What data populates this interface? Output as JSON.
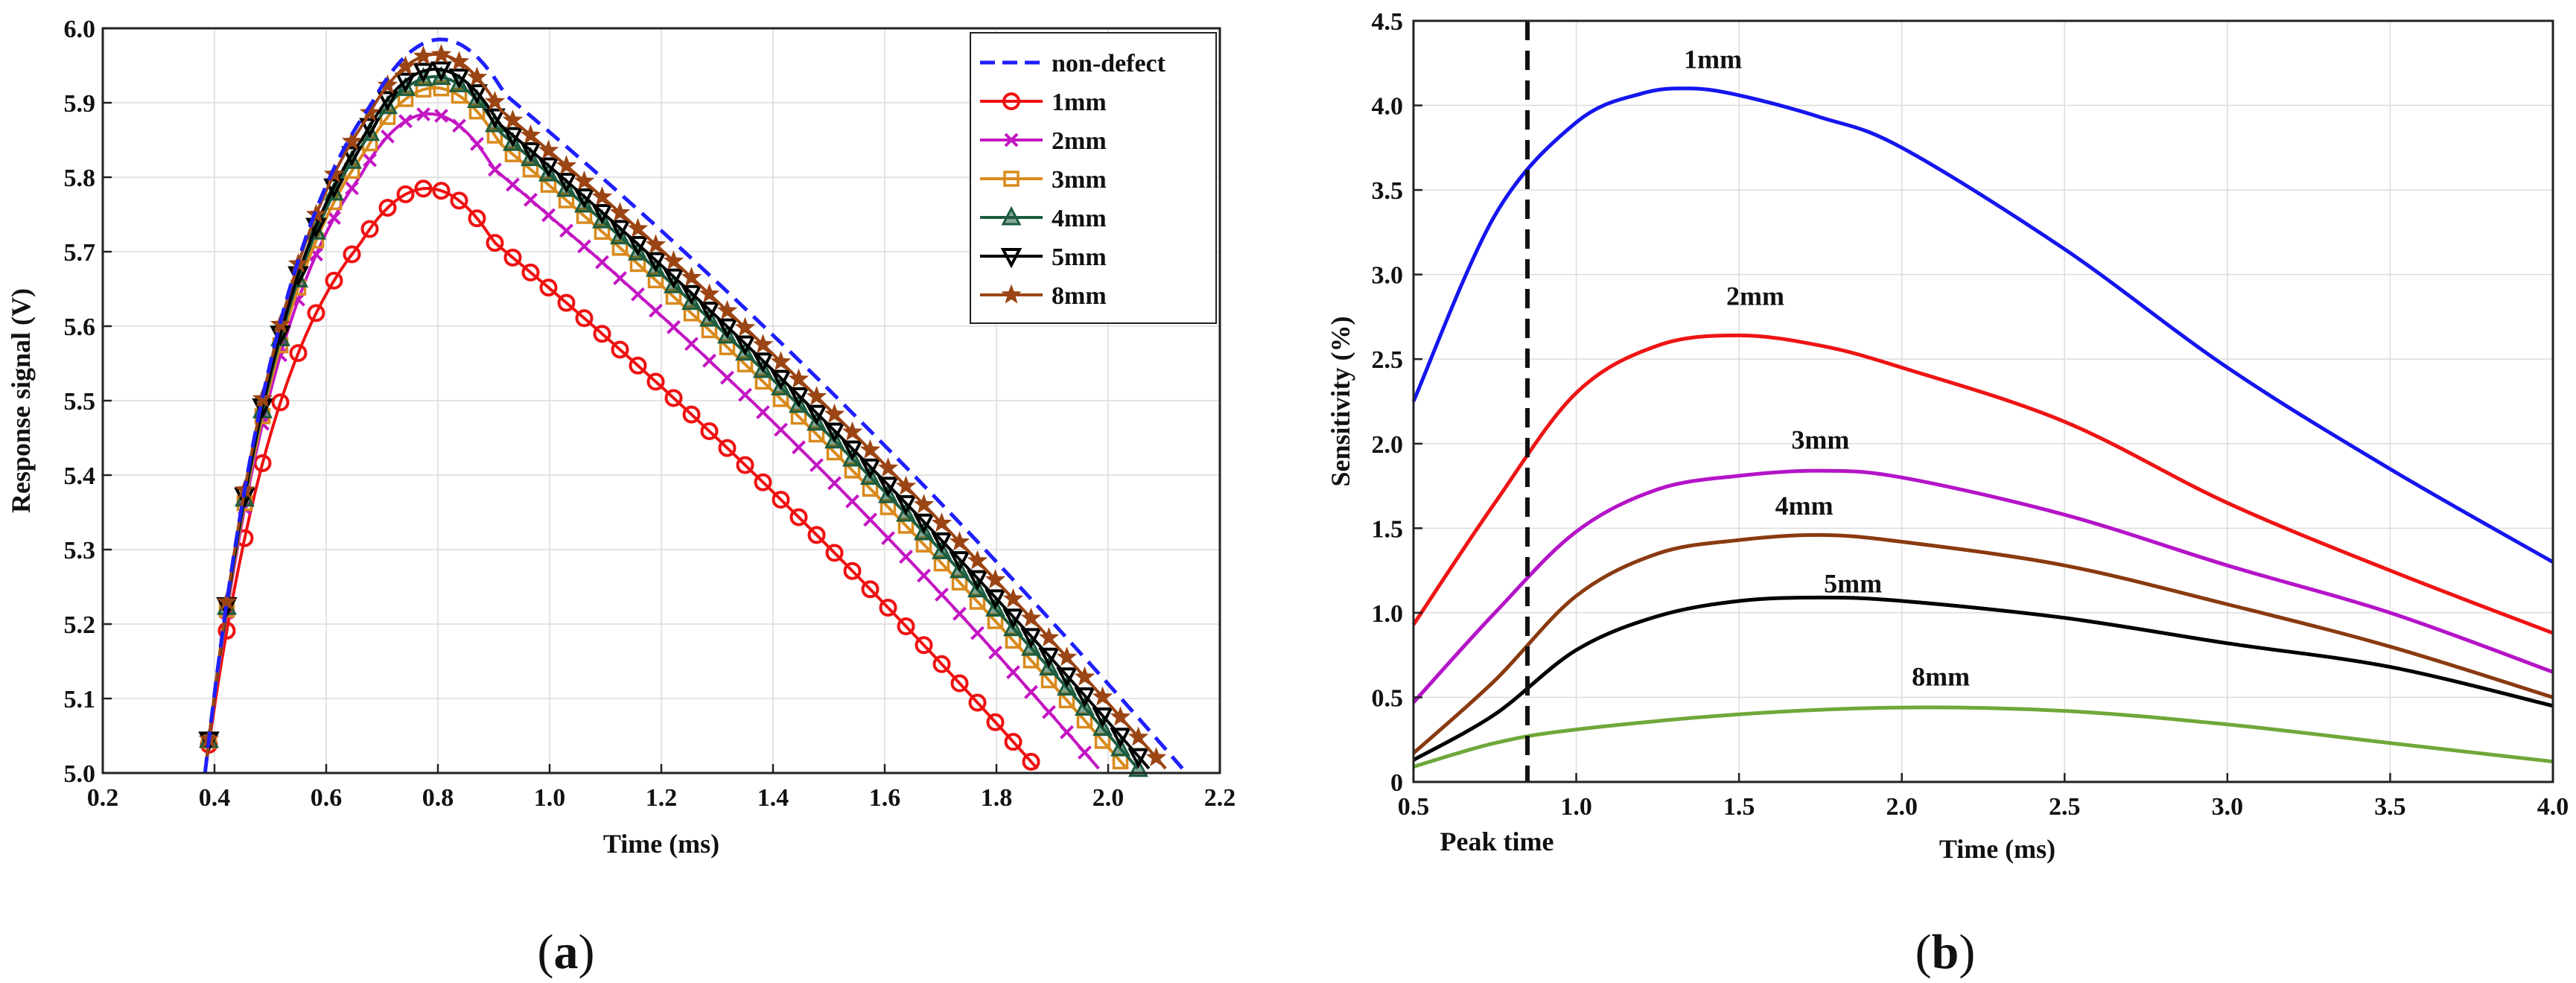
{
  "chart_data": [
    {
      "type": "line",
      "id": "a",
      "panel_label_letter": "a",
      "xlabel": "Time (ms)",
      "ylabel": "Response signal (V)",
      "xlim": [
        0.2,
        2.2
      ],
      "ylim": [
        5.0,
        6.0
      ],
      "xticks": [
        "0.2",
        "0.4",
        "0.6",
        "0.8",
        "1.0",
        "1.2",
        "1.4",
        "1.6",
        "1.8",
        "2.0",
        "2.2"
      ],
      "yticks": [
        "5.0",
        "5.1",
        "5.2",
        "5.3",
        "5.4",
        "5.5",
        "5.6",
        "5.7",
        "5.8",
        "5.9",
        "6.0"
      ],
      "grid": true,
      "legend_position": "top-right",
      "series": [
        {
          "name": "non-defect",
          "color": "#1f1fff",
          "dash": true,
          "marker": "none",
          "peak": 5.985,
          "peak_t": 0.8,
          "end_t": 2.14
        },
        {
          "name": "1mm",
          "color": "#ee1111",
          "marker": "circle",
          "peak": 5.785,
          "peak_t": 0.78,
          "end_t": 1.88
        },
        {
          "name": "2mm",
          "color": "#c316c3",
          "marker": "x",
          "peak": 5.885,
          "peak_t": 0.78,
          "end_t": 1.99
        },
        {
          "name": "3mm",
          "color": "#d98a1c",
          "marker": "square",
          "peak": 5.92,
          "peak_t": 0.79,
          "end_t": 2.04
        },
        {
          "name": "4mm",
          "color": "#1d5c3f",
          "marker": "triangle",
          "peak": 5.935,
          "peak_t": 0.79,
          "end_t": 2.06
        },
        {
          "name": "5mm",
          "color": "#000000",
          "marker": "triangle-down",
          "peak": 5.945,
          "peak_t": 0.79,
          "end_t": 2.08
        },
        {
          "name": "8mm",
          "color": "#9b4514",
          "marker": "star",
          "peak": 5.965,
          "peak_t": 0.79,
          "end_t": 2.11
        }
      ]
    },
    {
      "type": "line",
      "id": "b",
      "panel_label_letter": "b",
      "xlabel": "Time (ms)",
      "ylabel": "Sensitivity (%)",
      "xlim": [
        0.5,
        4.0
      ],
      "ylim": [
        0,
        4.5
      ],
      "xticks": [
        "0.5",
        "1.0",
        "1.5",
        "2.0",
        "2.5",
        "3.0",
        "3.5",
        "4.0"
      ],
      "yticks": [
        "0",
        "0.5",
        "1.0",
        "1.5",
        "2.0",
        "2.5",
        "3.0",
        "3.5",
        "4.0",
        "4.5"
      ],
      "grid": true,
      "vline": {
        "x": 0.85,
        "label": "Peak time"
      },
      "series": [
        {
          "name": "1mm",
          "color": "#1515ee",
          "x": [
            0.5,
            0.75,
            1.0,
            1.2,
            1.35,
            1.5,
            1.75,
            2.0,
            2.5,
            3.0,
            3.5,
            4.0
          ],
          "y": [
            2.25,
            3.35,
            3.9,
            4.07,
            4.1,
            4.06,
            3.93,
            3.75,
            3.15,
            2.45,
            1.85,
            1.3
          ]
        },
        {
          "name": "2mm",
          "color": "#ee1414",
          "x": [
            0.5,
            0.75,
            1.0,
            1.25,
            1.5,
            1.75,
            2.0,
            2.5,
            3.0,
            3.5,
            4.0
          ],
          "y": [
            0.93,
            1.65,
            2.3,
            2.58,
            2.64,
            2.58,
            2.45,
            2.13,
            1.65,
            1.25,
            0.88
          ]
        },
        {
          "name": "3mm",
          "color": "#b414c8",
          "x": [
            0.5,
            0.75,
            1.0,
            1.25,
            1.5,
            1.75,
            2.0,
            2.5,
            3.0,
            3.5,
            4.0
          ],
          "y": [
            0.47,
            1.0,
            1.48,
            1.73,
            1.81,
            1.84,
            1.8,
            1.58,
            1.28,
            1.0,
            0.65
          ]
        },
        {
          "name": "4mm",
          "color": "#8a3a10",
          "x": [
            0.5,
            0.75,
            1.0,
            1.25,
            1.5,
            1.75,
            2.0,
            2.5,
            3.0,
            3.5,
            4.0
          ],
          "y": [
            0.17,
            0.6,
            1.1,
            1.35,
            1.43,
            1.46,
            1.42,
            1.28,
            1.05,
            0.8,
            0.5
          ]
        },
        {
          "name": "5mm",
          "color": "#000000",
          "x": [
            0.5,
            0.75,
            1.0,
            1.25,
            1.5,
            1.75,
            2.0,
            2.5,
            3.0,
            3.5,
            4.0
          ],
          "y": [
            0.13,
            0.4,
            0.78,
            0.98,
            1.07,
            1.09,
            1.07,
            0.97,
            0.82,
            0.68,
            0.45
          ]
        },
        {
          "name": "8mm",
          "color": "#6fa83a",
          "x": [
            0.5,
            0.75,
            1.0,
            1.5,
            2.0,
            2.5,
            3.0,
            3.5,
            4.0
          ],
          "y": [
            0.09,
            0.23,
            0.31,
            0.4,
            0.44,
            0.42,
            0.34,
            0.23,
            0.12
          ]
        }
      ],
      "curve_labels": [
        {
          "text": "1mm",
          "x": 1.42,
          "y": 4.22
        },
        {
          "text": "2mm",
          "x": 1.55,
          "y": 2.82
        },
        {
          "text": "3mm",
          "x": 1.75,
          "y": 1.97
        },
        {
          "text": "4mm",
          "x": 1.7,
          "y": 1.58
        },
        {
          "text": "5mm",
          "x": 1.85,
          "y": 1.12
        },
        {
          "text": "8mm",
          "x": 2.12,
          "y": 0.57
        }
      ]
    }
  ]
}
